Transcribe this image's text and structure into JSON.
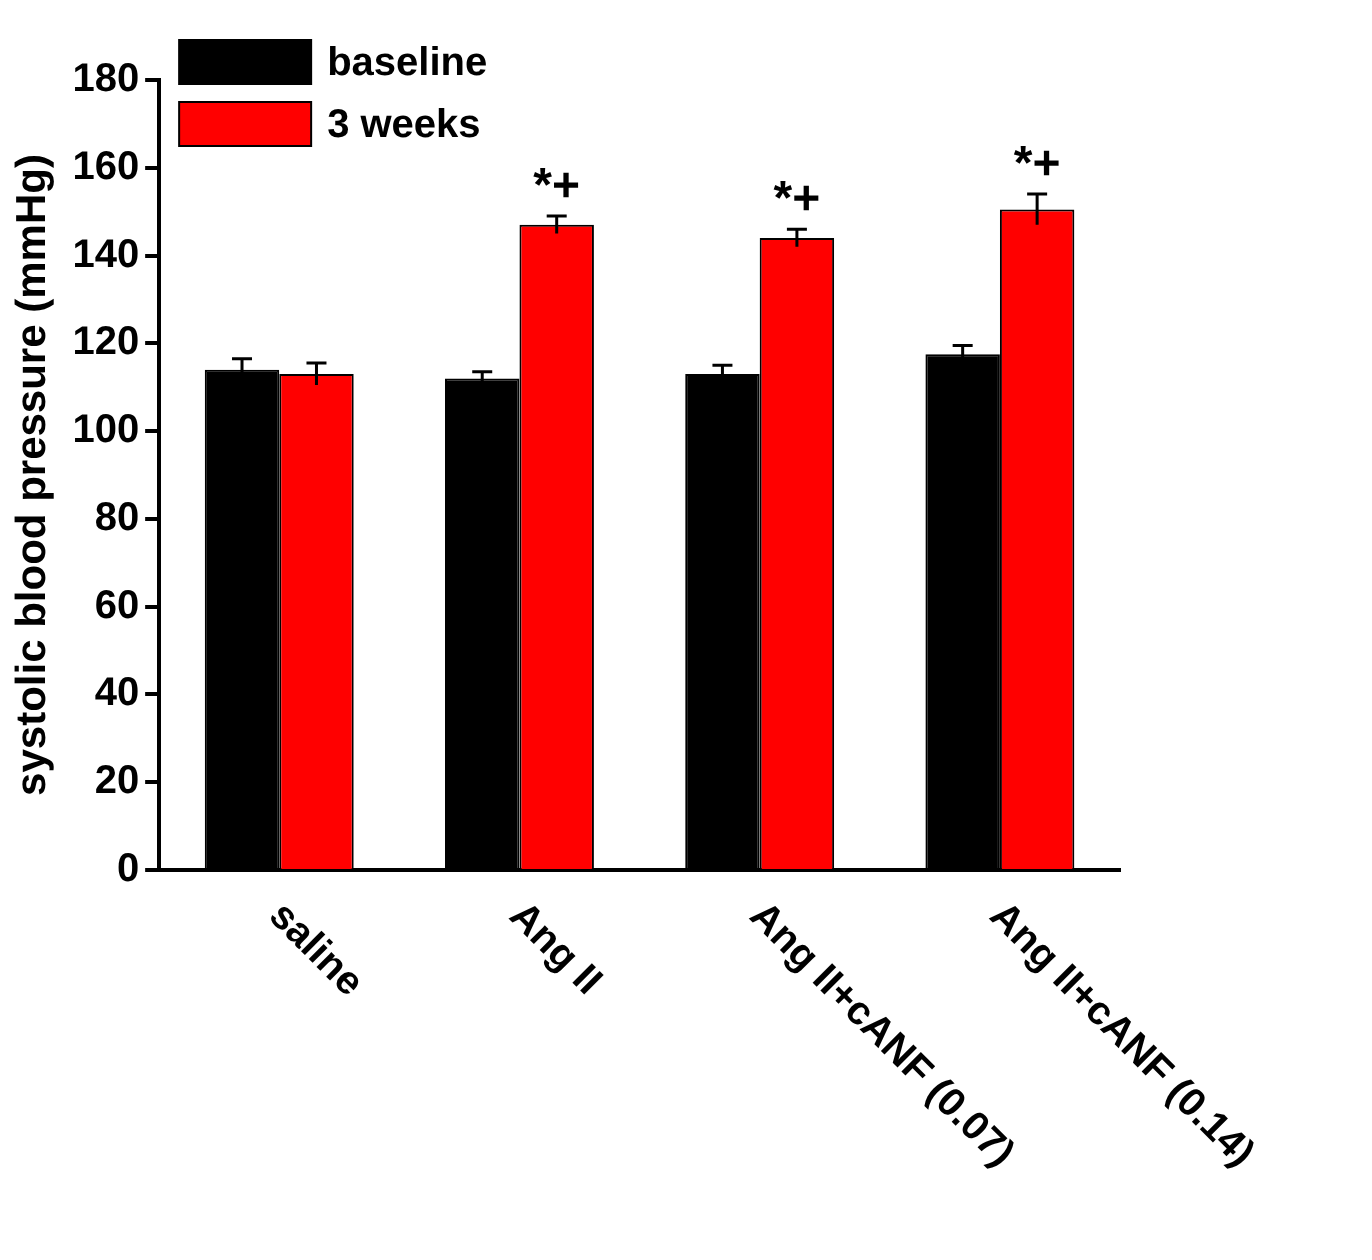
{
  "chart_data": {
    "type": "bar",
    "ylabel": "systolic blood pressure (mmHg)",
    "categories": [
      "saline",
      "Ang II",
      "Ang II+cANF (0.07)",
      "Ang II+cANF (0.14)"
    ],
    "series": [
      {
        "name": "baseline",
        "color": "#000000",
        "values": [
          114,
          112,
          113,
          117.5
        ],
        "errors": [
          2.5,
          1.5,
          2,
          2
        ]
      },
      {
        "name": "3 weeks",
        "color": "#ff0000",
        "values": [
          113,
          147,
          144,
          150.5
        ],
        "errors": [
          2.5,
          2,
          2,
          3.5
        ]
      }
    ],
    "ylim": [
      0,
      180
    ],
    "yticks": [
      0,
      20,
      40,
      60,
      80,
      100,
      120,
      140,
      160,
      180
    ],
    "grid": false,
    "legend": "top left",
    "annotations": [
      {
        "text": "*+",
        "x": "Ang II",
        "y": 147
      },
      {
        "text": "*+",
        "x": "Ang II+cANF (0.07)",
        "y": 144
      },
      {
        "text": "*+",
        "x": "Ang II+cANF (0.14)",
        "y": 150.5
      }
    ]
  }
}
